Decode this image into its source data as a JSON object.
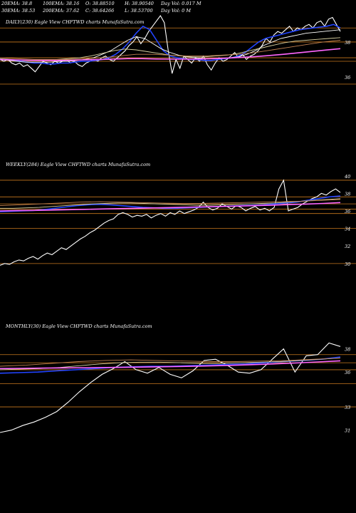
{
  "header": {
    "row1": [
      "20EMA: 38.8",
      "100EMA: 38.16",
      "O: 38.88510",
      "H: 38.90540",
      "Day Vol: 0.017 M"
    ],
    "row2": [
      "30EMA: 38.53",
      "200EMA: 37.62",
      "C: 38.64266",
      "L: 38.53700",
      "Day Vol: 0  M"
    ]
  },
  "chart_data": [
    {
      "type": "line",
      "title": "DAILY(230) Eagle   View  CHFTWD charts MunafaSutra.com",
      "ylim": [
        35.6,
        39.5
      ],
      "yticks": [
        "38",
        "36"
      ],
      "gridlines": [
        38.8,
        38.0,
        37.1,
        36.9,
        35.6
      ],
      "x_count": 230,
      "series": [
        {
          "color": "#ffffff",
          "values": [
            37.0,
            36.9,
            37.0,
            36.8,
            36.7,
            36.8,
            36.6,
            36.7,
            36.5,
            36.3,
            36.6,
            36.9,
            36.8,
            36.7,
            36.9,
            36.8,
            36.9,
            37.0,
            36.8,
            36.9,
            36.7,
            36.6,
            36.8,
            36.9,
            37.0,
            36.9,
            37.1,
            37.2,
            37.0,
            36.9,
            37.1,
            37.3,
            37.5,
            37.8,
            38.0,
            38.3,
            37.9,
            38.2,
            38.6,
            38.9,
            39.2,
            39.5,
            39.1,
            37.5,
            36.2,
            37.0,
            36.5,
            37.2,
            37.0,
            36.8,
            37.1,
            36.9,
            37.2,
            36.7,
            36.4,
            36.8,
            37.1,
            36.9,
            37.0,
            37.2,
            37.4,
            37.1,
            37.3,
            37.0,
            37.2,
            37.3,
            37.5,
            37.8,
            38.2,
            38.0,
            38.4,
            38.6,
            38.5,
            38.7,
            38.9,
            38.6,
            38.8,
            38.7,
            38.9,
            39.0,
            38.8,
            39.1,
            39.2,
            38.9,
            39.3,
            39.4,
            39.0,
            38.6
          ]
        },
        {
          "color": "#2244ff",
          "values": [
            37.0,
            37.0,
            36.95,
            36.9,
            36.85,
            36.8,
            36.8,
            36.75,
            36.75,
            36.8,
            36.8,
            36.85,
            36.9,
            36.9,
            36.95,
            37.0,
            37.1,
            37.3,
            37.6,
            38.0,
            38.5,
            38.9,
            38.7,
            38.1,
            37.5,
            37.2,
            37.1,
            37.05,
            37.0,
            37.0,
            36.95,
            36.95,
            37.0,
            37.05,
            37.1,
            37.2,
            37.4,
            37.7,
            38.0,
            38.2,
            38.3,
            38.4,
            38.5,
            38.6,
            38.7,
            38.75,
            38.8,
            38.85,
            38.9,
            39.0,
            38.8
          ]
        },
        {
          "color": "#ffffff",
          "values": [
            37.0,
            36.95,
            36.9,
            36.85,
            36.85,
            36.85,
            36.85,
            36.9,
            36.9,
            36.95,
            37.0,
            37.1,
            37.3,
            37.5,
            37.8,
            38.1,
            38.3,
            38.2,
            37.9,
            37.6,
            37.4,
            37.25,
            37.15,
            37.1,
            37.05,
            37.05,
            37.05,
            37.1,
            37.15,
            37.3,
            37.5,
            37.8,
            38.0,
            38.2,
            38.3,
            38.4,
            38.5,
            38.55,
            38.6,
            38.65,
            38.7
          ]
        },
        {
          "color": "#d8d0a0",
          "values": [
            37.05,
            37.0,
            36.95,
            36.95,
            36.95,
            37.0,
            37.05,
            37.1,
            37.2,
            37.35,
            37.5,
            37.6,
            37.55,
            37.45,
            37.35,
            37.25,
            37.2,
            37.15,
            37.15,
            37.2,
            37.25,
            37.35,
            37.5,
            37.65,
            37.8,
            37.95,
            38.05,
            38.1,
            38.15,
            38.2,
            38.25
          ]
        },
        {
          "color": "#ff66ff",
          "values": [
            37.0,
            36.98,
            36.96,
            36.95,
            36.95,
            36.96,
            36.98,
            37.0,
            37.02,
            37.05,
            37.05,
            37.03,
            37.02,
            37.02,
            37.03,
            37.05,
            37.08,
            37.12,
            37.17,
            37.23,
            37.3,
            37.38,
            37.46,
            37.54,
            37.62
          ]
        },
        {
          "color": "#c08050",
          "values": [
            37.1,
            37.05,
            37.0,
            37.0,
            37.0,
            37.05,
            37.1,
            37.2,
            37.3,
            37.3,
            37.25,
            37.2,
            37.2,
            37.25,
            37.3,
            37.4,
            37.55,
            37.7,
            37.85,
            38.0,
            38.1
          ]
        }
      ]
    },
    {
      "type": "line",
      "title": "WEEKLY(284) Eagle   View  CHFTWD charts MunafaSutra.com",
      "ylim": [
        29.5,
        41.2
      ],
      "yticks": [
        "40",
        "38",
        "36",
        "34",
        "32",
        "30"
      ],
      "gridlines": [
        39.5,
        37.6,
        36.8,
        36.2,
        35.7,
        34.0,
        30.0
      ],
      "x_count": 284,
      "series": [
        {
          "color": "#ffffff",
          "values": [
            29.8,
            30.0,
            29.9,
            30.2,
            30.4,
            30.3,
            30.6,
            30.8,
            30.5,
            30.9,
            31.2,
            31.0,
            31.4,
            31.8,
            31.6,
            32.0,
            32.4,
            32.8,
            33.1,
            33.5,
            33.8,
            34.2,
            34.6,
            34.9,
            35.1,
            35.6,
            35.8,
            35.6,
            35.3,
            35.5,
            35.4,
            35.6,
            35.2,
            35.5,
            35.7,
            35.4,
            35.8,
            35.6,
            36.0,
            35.7,
            35.9,
            36.1,
            36.4,
            37.0,
            36.4,
            36.1,
            36.3,
            36.8,
            36.5,
            36.2,
            36.6,
            36.4,
            36.0,
            36.3,
            36.5,
            36.1,
            36.3,
            36.0,
            36.4,
            38.5,
            39.5,
            36.0,
            36.2,
            36.4,
            36.8,
            37.1,
            37.4,
            37.6,
            38.0,
            37.8,
            38.2,
            38.5,
            38.1
          ]
        },
        {
          "color": "#2244ff",
          "values": [
            35.9,
            35.95,
            36.0,
            36.05,
            36.15,
            36.3,
            36.45,
            36.6,
            36.7,
            36.75,
            36.7,
            36.6,
            36.5,
            36.4,
            36.35,
            36.3,
            36.3,
            36.35,
            36.4,
            36.45,
            36.5,
            36.55,
            36.6,
            36.65,
            36.7,
            36.8,
            36.9,
            37.0,
            37.2,
            37.4,
            37.6,
            37.7
          ]
        },
        {
          "color": "#d8d0a0",
          "values": [
            36.3,
            36.3,
            36.35,
            36.4,
            36.5,
            36.6,
            36.7,
            36.8,
            36.85,
            36.9,
            36.9,
            36.85,
            36.8,
            36.75,
            36.7,
            36.65,
            36.65,
            36.7,
            36.75,
            36.8,
            36.85,
            36.9,
            37.0,
            37.1,
            37.2,
            37.3,
            37.4
          ]
        },
        {
          "color": "#ff66ff",
          "values": [
            36.0,
            36.03,
            36.06,
            36.1,
            36.14,
            36.18,
            36.22,
            36.26,
            36.3,
            36.34,
            36.38,
            36.42,
            36.46,
            36.5,
            36.55,
            36.6,
            36.66,
            36.72,
            36.78,
            36.85,
            36.95
          ]
        },
        {
          "color": "#c08050",
          "values": [
            36.6,
            36.7,
            36.8,
            36.9,
            37.0,
            37.05,
            37.0,
            36.95,
            36.9,
            36.85,
            36.85,
            36.9,
            36.95,
            37.0,
            37.05,
            37.1,
            37.2,
            37.3
          ]
        }
      ]
    },
    {
      "type": "line",
      "title": "MONTHLY(30) Eagle   View  CHFTWD charts MunafaSutra.com",
      "ylim": [
        30.0,
        39.2
      ],
      "yticks": [
        "38",
        "36",
        "33",
        "31"
      ],
      "gridlines": [
        37.5,
        36.8,
        36.2,
        35.0,
        33.0
      ],
      "x_count": 30,
      "series": [
        {
          "color": "#ffffff",
          "values": [
            30.8,
            31.0,
            31.4,
            31.7,
            32.1,
            32.6,
            33.4,
            34.3,
            35.1,
            35.8,
            36.3,
            36.9,
            36.2,
            35.9,
            36.4,
            35.8,
            35.5,
            36.1,
            37.0,
            37.1,
            36.6,
            36.0,
            35.9,
            36.2,
            37.1,
            38.0,
            36.0,
            37.4,
            37.5,
            38.5,
            38.2
          ]
        },
        {
          "color": "#2244ff",
          "values": [
            35.9,
            35.95,
            36.0,
            36.1,
            36.2,
            36.3,
            36.4,
            36.45,
            36.5,
            36.5,
            36.55,
            36.6,
            36.65,
            36.7,
            36.8,
            36.9,
            37.0,
            37.1,
            37.3
          ]
        },
        {
          "color": "#d8d0a0",
          "values": [
            36.2,
            36.25,
            36.3,
            36.4,
            36.55,
            36.7,
            36.8,
            36.85,
            36.85,
            36.8,
            36.75,
            36.75,
            36.8,
            36.85,
            36.9,
            37.0,
            37.1,
            37.2
          ]
        },
        {
          "color": "#ff66ff",
          "values": [
            36.3,
            36.32,
            36.34,
            36.36,
            36.38,
            36.4,
            36.42,
            36.45,
            36.48,
            36.52,
            36.57,
            36.63,
            36.7,
            36.78,
            36.87,
            36.97
          ]
        },
        {
          "color": "#c08050",
          "values": [
            36.5,
            36.6,
            36.75,
            36.9,
            37.0,
            37.05,
            37.0,
            36.95,
            36.9,
            36.9,
            36.95,
            37.0,
            37.1,
            37.2
          ]
        }
      ]
    }
  ]
}
